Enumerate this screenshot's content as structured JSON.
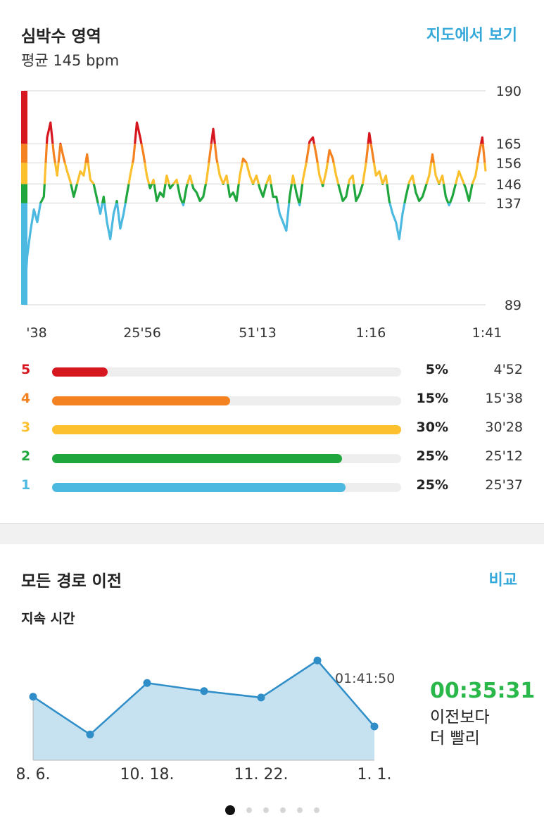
{
  "hr_section": {
    "title": "심박수 영역",
    "subtitle": "평균 145 bpm",
    "map_link": "지도에서 보기"
  },
  "chart_data": [
    {
      "type": "line",
      "title": "",
      "y_ticks": [
        190,
        165,
        156,
        146,
        137,
        89
      ],
      "ylim": [
        89,
        190
      ],
      "x_tick_labels": [
        "'38",
        "25'56",
        "51'13",
        "1:16",
        "1:41"
      ],
      "zone_thresholds": [
        137,
        146,
        156,
        165
      ],
      "zone_colors": [
        "#4cb9e1",
        "#1fa63c",
        "#fcc02e",
        "#f58220",
        "#d7171f"
      ],
      "grid": true,
      "series": [
        {
          "values": [
            89,
            112,
            124,
            134,
            128,
            137,
            140,
            168,
            175,
            160,
            150,
            165,
            158,
            152,
            147,
            140,
            146,
            152,
            150,
            160,
            148,
            146,
            139,
            132,
            140,
            128,
            120,
            132,
            138,
            125,
            132,
            141,
            150,
            158,
            175,
            168,
            160,
            150,
            144,
            148,
            138,
            142,
            140,
            150,
            144,
            146,
            148,
            140,
            136,
            145,
            150,
            144,
            142,
            138,
            140,
            148,
            160,
            172,
            158,
            150,
            146,
            150,
            140,
            142,
            138,
            150,
            158,
            156,
            150,
            146,
            150,
            144,
            140,
            146,
            150,
            140,
            140,
            132,
            128,
            124,
            140,
            150,
            142,
            136,
            148,
            156,
            166,
            168,
            160,
            150,
            145,
            152,
            162,
            158,
            150,
            144,
            138,
            140,
            148,
            150,
            138,
            141,
            146,
            156,
            170,
            160,
            150,
            152,
            146,
            150,
            138,
            132,
            128,
            120,
            132,
            140,
            147,
            150,
            142,
            138,
            140,
            145,
            150,
            160,
            150,
            146,
            150,
            140,
            136,
            140,
            146,
            152,
            148,
            144,
            138,
            146,
            150,
            160,
            168,
            152
          ]
        }
      ]
    },
    {
      "type": "area",
      "title": "",
      "x_tick_labels": [
        "8. 6.",
        "10. 18.",
        "11. 22.",
        "1. 1."
      ],
      "series": [
        {
          "values": [
            6295,
            6060,
            6380,
            6330,
            6290,
            6520,
            6110
          ]
        }
      ],
      "annotation": "01:41:50"
    }
  ],
  "zones": [
    {
      "num": "5",
      "pct": "5%",
      "time": "4'52",
      "fraction": 0.16,
      "color": "#d7171f"
    },
    {
      "num": "4",
      "pct": "15%",
      "time": "15'38",
      "fraction": 0.51,
      "color": "#f58220"
    },
    {
      "num": "3",
      "pct": "30%",
      "time": "30'28",
      "fraction": 1.0,
      "color": "#fcc02e"
    },
    {
      "num": "2",
      "pct": "25%",
      "time": "25'12",
      "fraction": 0.83,
      "color": "#1fa63c"
    },
    {
      "num": "1",
      "pct": "25%",
      "time": "25'37",
      "fraction": 0.84,
      "color": "#4cb9e1"
    }
  ],
  "route_section": {
    "title": "모든 경로 이전",
    "compare_link": "비교",
    "metric_label": "지속 시간",
    "result_time": "00:35:31",
    "result_text_line1": "이전보다",
    "result_text_line2": "더 빨리"
  },
  "pager": {
    "count": 6,
    "active": 0
  }
}
